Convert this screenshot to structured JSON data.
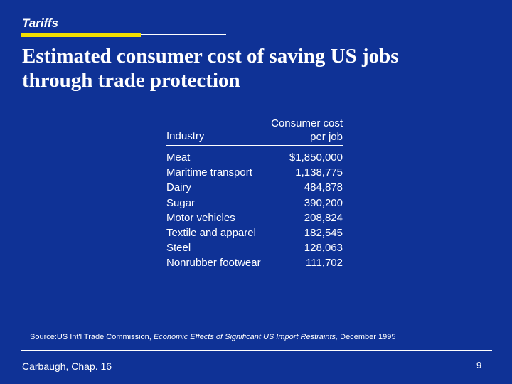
{
  "header": {
    "section": "Tariffs"
  },
  "title": {
    "line1": "Estimated consumer cost of saving US jobs",
    "line2": "through trade protection"
  },
  "table": {
    "columns": {
      "industry": "Industry",
      "cost_line1": "Consumer cost",
      "cost_line2": "per job"
    },
    "rows": [
      {
        "industry": "Meat",
        "cost": "$1,850,000"
      },
      {
        "industry": "Maritime transport",
        "cost": "1,138,775"
      },
      {
        "industry": "Dairy",
        "cost": "484,878"
      },
      {
        "industry": "Sugar",
        "cost": "390,200"
      },
      {
        "industry": "Motor vehicles",
        "cost": "208,824"
      },
      {
        "industry": "Textile and apparel",
        "cost": "182,545"
      },
      {
        "industry": "Steel",
        "cost": "128,063"
      },
      {
        "industry": "Nonrubber footwear",
        "cost": "111,702"
      }
    ]
  },
  "source": {
    "prefix": "Source:US Int'l Trade Commission, ",
    "publication": "Economic Effects of Significant US Import Restraints,",
    "date": " December 1995"
  },
  "footer": {
    "left": "Carbaugh, Chap. 16",
    "page": "9"
  },
  "colors": {
    "background": "#0f3296",
    "accent": "#f2e000",
    "text": "#ffffff"
  }
}
